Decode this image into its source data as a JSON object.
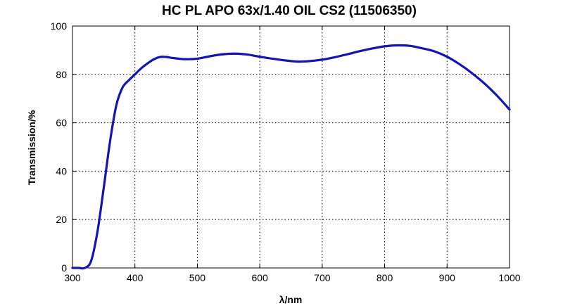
{
  "chart_data": {
    "type": "line",
    "title": "HC PL APO 63x/1.40 OIL CS2 (11506350)",
    "xlabel": "λ/nm",
    "ylabel": "Transmission/%",
    "xlim": [
      300,
      1000
    ],
    "ylim": [
      0,
      100
    ],
    "x_ticks": [
      300,
      400,
      500,
      600,
      700,
      800,
      900,
      1000
    ],
    "y_ticks": [
      0,
      20,
      40,
      60,
      80,
      100
    ],
    "grid": true,
    "line_color": "#1414b4",
    "series": [
      {
        "x": [
          300,
          310,
          320,
          330,
          340,
          350,
          360,
          370,
          380,
          390,
          400,
          410,
          420,
          430,
          440,
          450,
          460,
          480,
          500,
          520,
          540,
          560,
          580,
          600,
          620,
          640,
          660,
          680,
          700,
          720,
          740,
          760,
          780,
          800,
          820,
          840,
          860,
          880,
          900,
          920,
          940,
          960,
          980,
          1000
        ],
        "y": [
          0,
          0,
          0,
          3,
          15,
          33,
          52,
          67,
          74.5,
          77.5,
          80,
          82.5,
          84.5,
          86.2,
          87.2,
          87.2,
          86.8,
          86.3,
          86.5,
          87.5,
          88.3,
          88.6,
          88.2,
          87.3,
          86.5,
          85.8,
          85.3,
          85.5,
          86.1,
          87.1,
          88.3,
          89.6,
          90.7,
          91.6,
          92,
          91.8,
          90.8,
          89.5,
          87.3,
          84.2,
          80.5,
          76.2,
          71.2,
          65.5
        ]
      }
    ]
  }
}
